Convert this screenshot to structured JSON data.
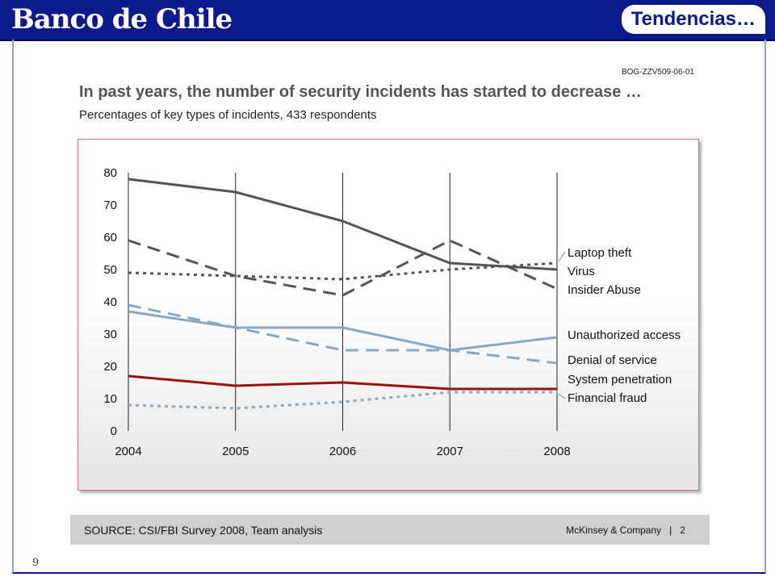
{
  "header": {
    "brand": "Banco de Chile",
    "title": "Tendencias…"
  },
  "doc_code": "BOG-ZZV509-06-01",
  "headline": "In past years, the number of security incidents has started to decrease …",
  "subheadline": "Percentages of key types of incidents, 433 respondents",
  "footer": {
    "source": "SOURCE: CSI/FBI Survey 2008, Team analysis",
    "company": "McKinsey & Company",
    "page": "2",
    "separator": "|"
  },
  "slide_number": "9",
  "colors": {
    "header_bg": "#0a1a8a",
    "dark_gray": "#555555",
    "light_blue": "#8aa8c0",
    "dark_red": "#9a1010"
  },
  "chart_data": {
    "type": "line",
    "title": "",
    "xlabel": "",
    "ylabel": "",
    "x": [
      "2004",
      "2005",
      "2006",
      "2007",
      "2008"
    ],
    "ylim": [
      0,
      80
    ],
    "yticks": [
      0,
      10,
      20,
      30,
      40,
      50,
      60,
      70,
      80
    ],
    "grid": "vertical lines at each year",
    "legend": "right-side labels",
    "series": [
      {
        "name": "Laptop theft",
        "values": [
          49,
          48,
          47,
          50,
          52
        ],
        "color": "#555555",
        "style": "dotted"
      },
      {
        "name": "Virus",
        "values": [
          78,
          74,
          65,
          52,
          50
        ],
        "color": "#555555",
        "style": "solid"
      },
      {
        "name": "Insider Abuse",
        "values": [
          59,
          48,
          42,
          59,
          44
        ],
        "color": "#555555",
        "style": "dashed"
      },
      {
        "name": "Unauthorized access",
        "values": [
          37,
          32,
          32,
          25,
          29
        ],
        "color": "#8aa8c0",
        "style": "solid"
      },
      {
        "name": "Denial of service",
        "values": [
          39,
          32,
          25,
          25,
          21
        ],
        "color": "#8aa8c0",
        "style": "dashed"
      },
      {
        "name": "System penetration",
        "values": [
          17,
          14,
          15,
          13,
          13
        ],
        "color": "#9a1010",
        "style": "solid"
      },
      {
        "name": "Financial fraud",
        "values": [
          8,
          7,
          9,
          12,
          12
        ],
        "color": "#8aa8c0",
        "style": "dotted"
      }
    ]
  }
}
